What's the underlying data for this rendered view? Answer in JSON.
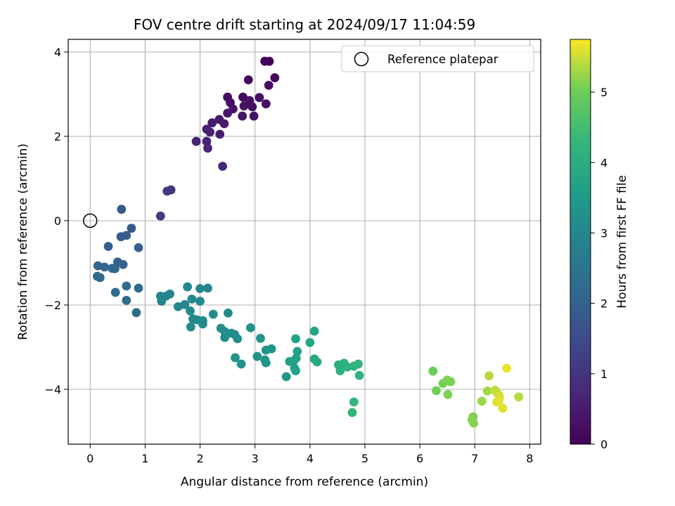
{
  "chart_data": {
    "type": "scatter",
    "title": "FOV centre drift starting at 2024/09/17 11:04:59",
    "xlabel": "Angular distance from reference (arcmin)",
    "ylabel": "Rotation from reference (arcmin)",
    "xlim": [
      -0.4,
      8.2
    ],
    "ylim": [
      -5.3,
      4.3
    ],
    "xticks": [
      0,
      1,
      2,
      3,
      4,
      5,
      6,
      7,
      8
    ],
    "yticks": [
      -4,
      -2,
      0,
      2,
      4
    ],
    "grid": true,
    "legend": {
      "placement": "top-right",
      "entries": [
        "Reference platepar"
      ]
    },
    "reference_point": {
      "x": 0,
      "y": 0
    },
    "colorbar": {
      "label": "Hours from first FF file",
      "colormap": "viridis",
      "range": [
        0,
        5.75
      ],
      "ticks": [
        0,
        1,
        2,
        3,
        4,
        5
      ]
    },
    "points": [
      [
        3.18,
        3.78,
        0.05
      ],
      [
        3.26,
        3.78,
        0.08
      ],
      [
        3.36,
        3.39,
        0.1
      ],
      [
        2.88,
        3.34,
        0.15
      ],
      [
        3.25,
        3.21,
        0.18
      ],
      [
        2.5,
        2.93,
        0.22
      ],
      [
        2.78,
        2.93,
        0.2
      ],
      [
        3.08,
        2.92,
        0.25
      ],
      [
        2.55,
        2.8,
        0.28
      ],
      [
        2.9,
        2.85,
        0.3
      ],
      [
        3.2,
        2.77,
        0.28
      ],
      [
        2.8,
        2.72,
        0.32
      ],
      [
        2.95,
        2.7,
        0.3
      ],
      [
        2.6,
        2.65,
        0.35
      ],
      [
        2.5,
        2.55,
        0.4
      ],
      [
        2.77,
        2.48,
        0.38
      ],
      [
        2.98,
        2.48,
        0.33
      ],
      [
        2.35,
        2.4,
        0.45
      ],
      [
        2.22,
        2.32,
        0.5
      ],
      [
        2.44,
        2.3,
        0.48
      ],
      [
        2.12,
        2.17,
        0.55
      ],
      [
        2.18,
        2.1,
        0.58
      ],
      [
        2.36,
        2.05,
        0.52
      ],
      [
        2.12,
        1.88,
        0.62
      ],
      [
        1.93,
        1.88,
        0.6
      ],
      [
        2.14,
        1.72,
        0.65
      ],
      [
        2.41,
        1.29,
        0.7
      ],
      [
        1.4,
        0.7,
        1.0
      ],
      [
        1.47,
        0.73,
        1.05
      ],
      [
        1.28,
        0.11,
        1.2
      ],
      [
        0.57,
        0.27,
        1.8
      ],
      [
        0.75,
        -0.18,
        1.85
      ],
      [
        0.66,
        -0.35,
        1.9
      ],
      [
        0.56,
        -0.38,
        1.92
      ],
      [
        0.33,
        -0.61,
        1.95
      ],
      [
        0.88,
        -0.64,
        1.98
      ],
      [
        0.5,
        -0.98,
        2.05
      ],
      [
        0.6,
        -1.04,
        2.05
      ],
      [
        0.14,
        -1.07,
        2.1
      ],
      [
        0.26,
        -1.1,
        2.1
      ],
      [
        0.4,
        -1.13,
        2.12
      ],
      [
        0.45,
        -1.14,
        2.12
      ],
      [
        0.13,
        -1.32,
        2.15
      ],
      [
        0.18,
        -1.35,
        2.15
      ],
      [
        0.66,
        -1.55,
        2.2
      ],
      [
        0.88,
        -1.6,
        2.22
      ],
      [
        0.46,
        -1.7,
        2.25
      ],
      [
        0.66,
        -1.89,
        2.25
      ],
      [
        0.84,
        -2.18,
        2.25
      ],
      [
        1.77,
        -1.57,
        3.0
      ],
      [
        2.0,
        -1.61,
        3.0
      ],
      [
        2.14,
        -1.6,
        3.0
      ],
      [
        1.45,
        -1.74,
        2.95
      ],
      [
        1.38,
        -1.79,
        2.95
      ],
      [
        1.28,
        -1.79,
        2.95
      ],
      [
        1.3,
        -1.91,
        2.95
      ],
      [
        1.85,
        -1.86,
        3.05
      ],
      [
        2.0,
        -1.91,
        3.05
      ],
      [
        1.6,
        -2.04,
        3.0
      ],
      [
        1.72,
        -1.99,
        3.0
      ],
      [
        1.82,
        -2.14,
        3.05
      ],
      [
        2.24,
        -2.22,
        3.1
      ],
      [
        2.51,
        -2.19,
        3.1
      ],
      [
        1.87,
        -2.33,
        3.05
      ],
      [
        1.94,
        -2.35,
        3.05
      ],
      [
        2.05,
        -2.37,
        3.1
      ],
      [
        2.05,
        -2.45,
        3.1
      ],
      [
        1.83,
        -2.52,
        3.1
      ],
      [
        2.38,
        -2.55,
        3.15
      ],
      [
        2.45,
        -2.63,
        3.15
      ],
      [
        2.57,
        -2.67,
        3.15
      ],
      [
        2.63,
        -2.7,
        3.15
      ],
      [
        2.45,
        -2.77,
        3.15
      ],
      [
        2.68,
        -2.8,
        3.2
      ],
      [
        2.92,
        -2.54,
        3.25
      ],
      [
        3.1,
        -2.79,
        3.3
      ],
      [
        3.2,
        -3.07,
        3.35
      ],
      [
        3.3,
        -3.04,
        3.35
      ],
      [
        3.04,
        -3.22,
        3.3
      ],
      [
        3.18,
        -3.3,
        3.35
      ],
      [
        3.2,
        -3.37,
        3.4
      ],
      [
        2.64,
        -3.25,
        3.3
      ],
      [
        2.75,
        -3.4,
        3.3
      ],
      [
        3.57,
        -3.7,
        3.45
      ],
      [
        3.63,
        -3.34,
        3.65
      ],
      [
        3.7,
        -3.33,
        3.65
      ],
      [
        3.72,
        -3.5,
        3.65
      ],
      [
        3.74,
        -3.56,
        3.7
      ],
      [
        3.75,
        -3.26,
        3.7
      ],
      [
        3.77,
        -3.1,
        3.7
      ],
      [
        3.74,
        -2.8,
        3.7
      ],
      [
        4.0,
        -2.89,
        3.8
      ],
      [
        4.08,
        -2.62,
        3.8
      ],
      [
        4.08,
        -3.28,
        3.85
      ],
      [
        4.13,
        -3.35,
        3.9
      ],
      [
        4.52,
        -3.42,
        4.05
      ],
      [
        4.55,
        -3.56,
        4.1
      ],
      [
        4.62,
        -3.38,
        4.1
      ],
      [
        4.68,
        -3.47,
        4.15
      ],
      [
        4.8,
        -3.45,
        4.15
      ],
      [
        4.88,
        -3.4,
        4.2
      ],
      [
        4.9,
        -3.67,
        4.2
      ],
      [
        4.8,
        -4.3,
        4.25
      ],
      [
        4.77,
        -4.55,
        4.25
      ],
      [
        6.24,
        -3.57,
        5.0
      ],
      [
        6.3,
        -4.03,
        5.05
      ],
      [
        6.42,
        -3.86,
        5.05
      ],
      [
        6.5,
        -3.78,
        5.1
      ],
      [
        6.56,
        -3.82,
        5.1
      ],
      [
        6.51,
        -4.12,
        5.1
      ],
      [
        7.13,
        -4.28,
        5.25
      ],
      [
        7.23,
        -4.04,
        5.3
      ],
      [
        7.26,
        -3.68,
        5.4
      ],
      [
        7.37,
        -4.02,
        5.45
      ],
      [
        7.4,
        -4.07,
        5.45
      ],
      [
        7.44,
        -4.14,
        5.5
      ],
      [
        7.45,
        -4.2,
        5.55
      ],
      [
        7.4,
        -4.3,
        5.6
      ],
      [
        7.44,
        -4.28,
        5.6
      ],
      [
        7.51,
        -4.45,
        5.6
      ],
      [
        7.58,
        -3.5,
        5.65
      ],
      [
        7.8,
        -4.18,
        5.4
      ],
      [
        6.97,
        -4.65,
        5.1
      ],
      [
        6.95,
        -4.72,
        5.15
      ],
      [
        6.98,
        -4.8,
        5.15
      ]
    ]
  }
}
